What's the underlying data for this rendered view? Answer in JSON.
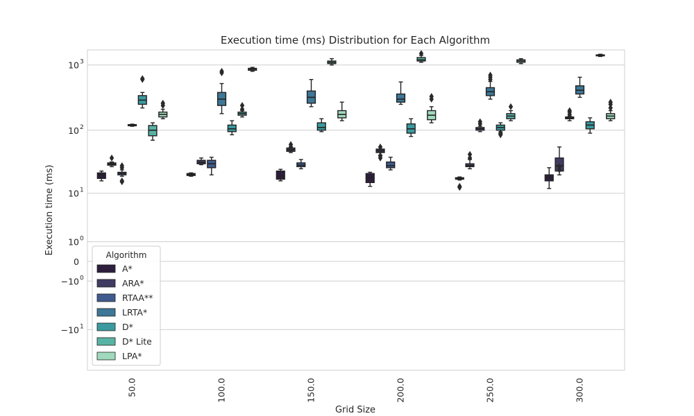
{
  "chart_data": {
    "type": "box",
    "title": "Execution time (ms) Distribution for Each Algorithm",
    "xlabel": "Grid Size",
    "ylabel": "Execution time (ms)",
    "yscale": "symlog",
    "grid": "horizontal",
    "legend": {
      "title": "Algorithm",
      "placement": "lower-left"
    },
    "categories": [
      "50.0",
      "100.0",
      "150.0",
      "200.0",
      "250.0",
      "300.0"
    ],
    "y_ticks": [
      {
        "value": 1000,
        "base": "10",
        "exp": "3"
      },
      {
        "value": 100,
        "base": "10",
        "exp": "2"
      },
      {
        "value": 10,
        "base": "10",
        "exp": "1"
      },
      {
        "value": 1,
        "base": "10",
        "exp": "0"
      },
      {
        "value": 0,
        "base": "0",
        "exp": ""
      },
      {
        "value": -1,
        "base": "−10",
        "exp": "0"
      },
      {
        "value": -10,
        "base": "−10",
        "exp": "1"
      }
    ],
    "ylim": [
      -45,
      1700
    ],
    "series": [
      {
        "name": "A*",
        "color": "#2d1e3e",
        "boxes": [
          {
            "whislo": 16,
            "q1": 17.5,
            "med": 20,
            "q3": 21.5,
            "whishi": 23,
            "fliers": []
          },
          {
            "whislo": 19,
            "q1": 19.5,
            "med": 20,
            "q3": 21,
            "whishi": 21.5,
            "fliers": []
          },
          {
            "whislo": 16,
            "q1": 17,
            "med": 19,
            "q3": 23,
            "whishi": 24.5,
            "fliers": []
          },
          {
            "whislo": 13,
            "q1": 15,
            "med": 18,
            "q3": 21,
            "whishi": 22,
            "fliers": []
          },
          {
            "whislo": 16.5,
            "q1": 17,
            "med": 17.5,
            "q3": 18,
            "whishi": 18.5,
            "fliers": [
              12.5,
              13
            ]
          },
          {
            "whislo": 12,
            "q1": 16,
            "med": 18,
            "q3": 20,
            "whishi": 26,
            "fliers": []
          }
        ]
      },
      {
        "name": "ARA*",
        "color": "#403b62",
        "boxes": [
          {
            "whislo": 27,
            "q1": 28.5,
            "med": 29.5,
            "q3": 31,
            "whishi": 32,
            "fliers": [
              37
            ]
          },
          {
            "whislo": 29,
            "q1": 30,
            "med": 31.5,
            "q3": 34,
            "whishi": 37,
            "fliers": []
          },
          {
            "whislo": 45,
            "q1": 47,
            "med": 50,
            "q3": 53,
            "whishi": 55,
            "fliers": [
              60,
              55,
              50
            ]
          },
          {
            "whislo": 41,
            "q1": 45,
            "med": 48,
            "q3": 51,
            "whishi": 55,
            "fliers": [
              37,
              40,
              50,
              47,
              55
            ]
          },
          {
            "whislo": 25,
            "q1": 27,
            "med": 28,
            "q3": 30,
            "whishi": 35,
            "fliers": [
              42,
              37
            ]
          },
          {
            "whislo": 20,
            "q1": 23,
            "med": 28,
            "q3": 37,
            "whishi": 55,
            "fliers": [
              24,
              27
            ]
          }
        ]
      },
      {
        "name": "RTAA**",
        "color": "#3f5a8e",
        "boxes": [
          {
            "whislo": 19,
            "q1": 20,
            "med": 21,
            "q3": 22,
            "whishi": 24,
            "fliers": [
              15.5,
              16,
              26,
              28
            ]
          },
          {
            "whislo": 20,
            "q1": 26,
            "med": 30,
            "q3": 34,
            "whishi": 38,
            "fliers": []
          },
          {
            "whislo": 25,
            "q1": 27,
            "med": 28.5,
            "q3": 31,
            "whishi": 35,
            "fliers": []
          },
          {
            "whislo": 24,
            "q1": 26,
            "med": 28,
            "q3": 32,
            "whishi": 38,
            "fliers": []
          },
          {
            "whislo": 95,
            "q1": 100,
            "med": 105,
            "q3": 110,
            "whishi": 115,
            "fliers": [
              125,
              135
            ]
          },
          {
            "whislo": 140,
            "q1": 150,
            "med": 155,
            "q3": 160,
            "whishi": 165,
            "fliers": [
              175,
              190,
              200
            ]
          }
        ]
      },
      {
        "name": "LRTA*",
        "color": "#3e7797",
        "boxes": [
          {
            "whislo": 115,
            "q1": 117,
            "med": 120,
            "q3": 122,
            "whishi": 124,
            "fliers": []
          },
          {
            "whislo": 180,
            "q1": 240,
            "med": 300,
            "q3": 380,
            "whishi": 520,
            "fliers": [
              760,
              800
            ]
          },
          {
            "whislo": 230,
            "q1": 260,
            "med": 320,
            "q3": 400,
            "whishi": 600,
            "fliers": []
          },
          {
            "whislo": 250,
            "q1": 270,
            "med": 300,
            "q3": 360,
            "whishi": 550,
            "fliers": []
          },
          {
            "whislo": 300,
            "q1": 340,
            "med": 390,
            "q3": 450,
            "whishi": 560,
            "fliers": [
              600,
              650,
              700
            ]
          },
          {
            "whislo": 320,
            "q1": 360,
            "med": 410,
            "q3": 480,
            "whishi": 650,
            "fliers": []
          }
        ]
      },
      {
        "name": "D*",
        "color": "#3a9a9f",
        "boxes": [
          {
            "whislo": 220,
            "q1": 250,
            "med": 290,
            "q3": 340,
            "whishi": 380,
            "fliers": [
              600,
              620
            ]
          },
          {
            "whislo": 85,
            "q1": 95,
            "med": 105,
            "q3": 120,
            "whishi": 140,
            "fliers": []
          },
          {
            "whislo": 95,
            "q1": 100,
            "med": 110,
            "q3": 130,
            "whishi": 150,
            "fliers": []
          },
          {
            "whislo": 80,
            "q1": 90,
            "med": 105,
            "q3": 125,
            "whishi": 150,
            "fliers": []
          },
          {
            "whislo": 95,
            "q1": 100,
            "med": 110,
            "q3": 120,
            "whishi": 130,
            "fliers": [
              85,
              88,
              90
            ]
          },
          {
            "whislo": 90,
            "q1": 105,
            "med": 120,
            "q3": 135,
            "whishi": 155,
            "fliers": []
          }
        ]
      },
      {
        "name": "D* Lite",
        "color": "#59b3a4",
        "boxes": [
          {
            "whislo": 70,
            "q1": 82,
            "med": 100,
            "q3": 118,
            "whishi": 130,
            "fliers": []
          },
          {
            "whislo": 160,
            "q1": 170,
            "med": 180,
            "q3": 190,
            "whishi": 200,
            "fliers": [
              210,
              240
            ]
          },
          {
            "whislo": 1000,
            "q1": 1050,
            "med": 1100,
            "q3": 1150,
            "whishi": 1250,
            "fliers": []
          },
          {
            "whislo": 1100,
            "q1": 1150,
            "med": 1200,
            "q3": 1300,
            "whishi": 1400,
            "fliers": [
              1500
            ]
          },
          {
            "whislo": 140,
            "q1": 150,
            "med": 165,
            "q3": 180,
            "whishi": 200,
            "fliers": [
              230
            ]
          },
          {
            "whislo": 1350,
            "q1": 1380,
            "med": 1400,
            "q3": 1430,
            "whishi": 1460,
            "fliers": []
          }
        ]
      },
      {
        "name": "LPA*",
        "color": "#a0d9bd",
        "boxes": [
          {
            "whislo": 150,
            "q1": 160,
            "med": 175,
            "q3": 190,
            "whishi": 210,
            "fliers": [
              240,
              260
            ]
          },
          {
            "whislo": 800,
            "q1": 830,
            "med": 860,
            "q3": 890,
            "whishi": 920,
            "fliers": []
          },
          {
            "whislo": 140,
            "q1": 155,
            "med": 175,
            "q3": 200,
            "whishi": 270,
            "fliers": []
          },
          {
            "whislo": 130,
            "q1": 145,
            "med": 170,
            "q3": 200,
            "whishi": 230,
            "fliers": [
              300,
              330
            ]
          },
          {
            "whislo": 1050,
            "q1": 1100,
            "med": 1150,
            "q3": 1200,
            "whishi": 1250,
            "fliers": []
          },
          {
            "whislo": 140,
            "q1": 150,
            "med": 165,
            "q3": 180,
            "whishi": 200,
            "fliers": [
              220,
              250,
              270
            ]
          }
        ]
      }
    ]
  }
}
